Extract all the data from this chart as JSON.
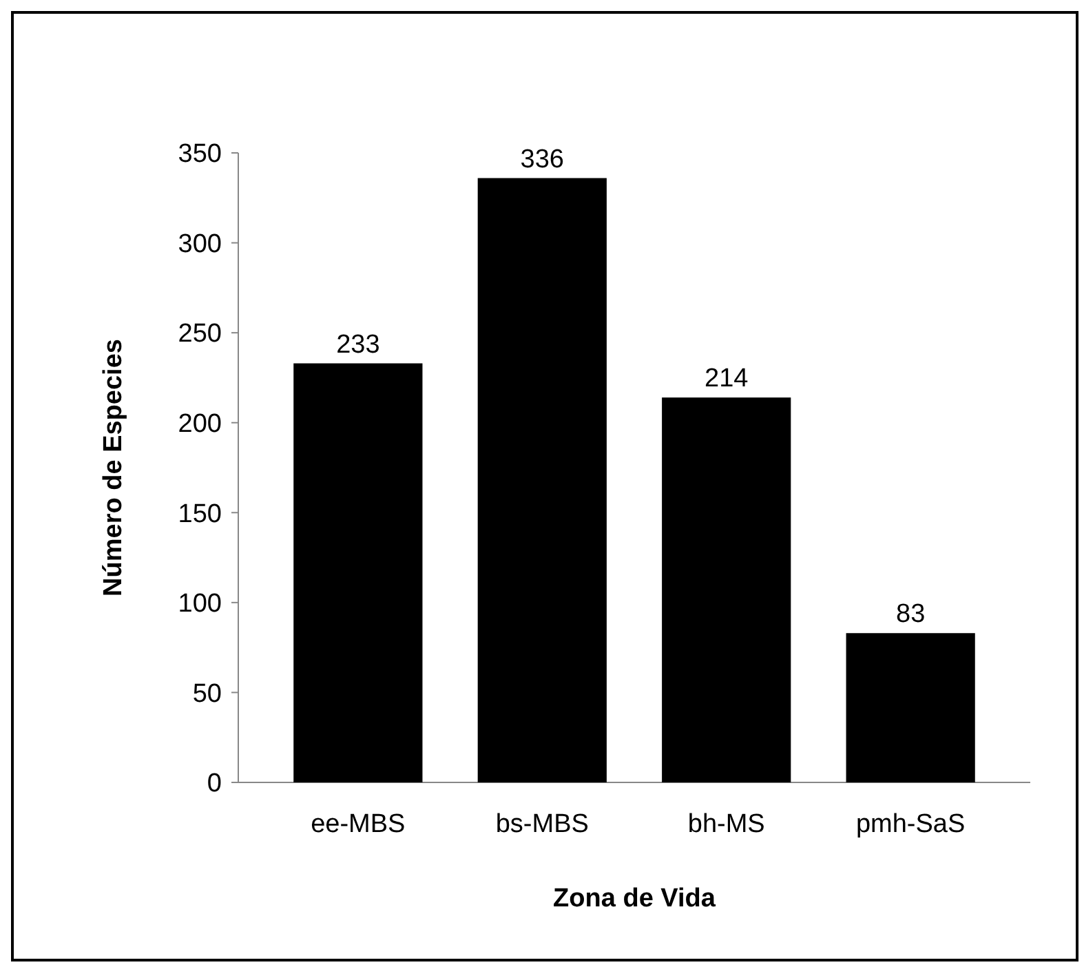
{
  "chart_data": {
    "type": "bar",
    "xlabel": "Zona de Vida",
    "ylabel": "Número de Especies",
    "categories": [
      "ee-MBS",
      "bs-MBS",
      "bh-MS",
      "pmh-SaS"
    ],
    "values": [
      233,
      336,
      214,
      83
    ],
    "color": "#000000",
    "ylim": [
      0,
      350
    ],
    "yticks": [
      0,
      50,
      100,
      150,
      200,
      250,
      300,
      350
    ],
    "data_labels": true
  }
}
